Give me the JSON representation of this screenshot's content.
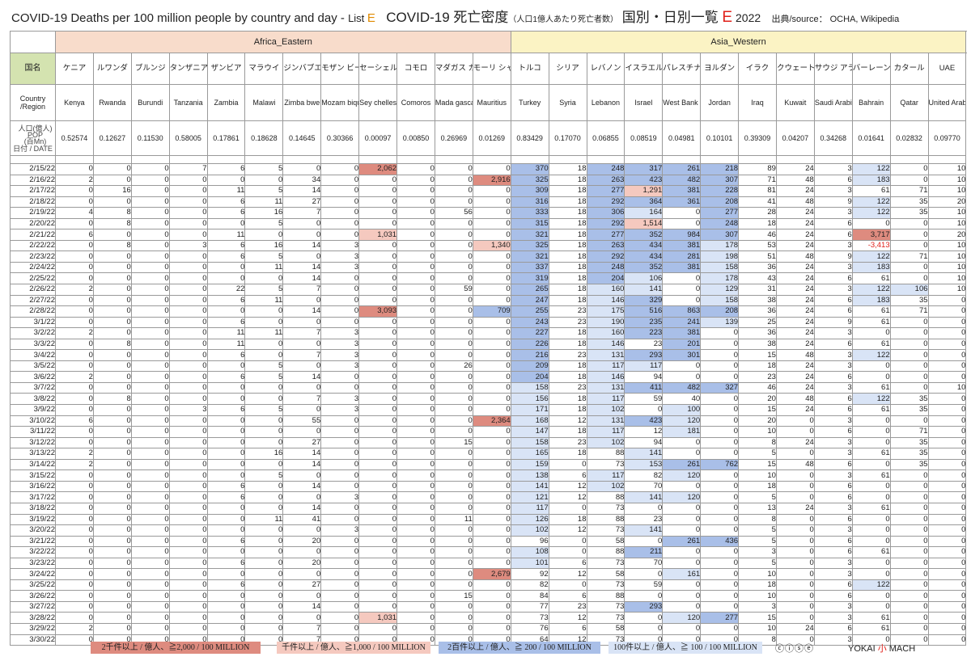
{
  "title": {
    "en": "COVID-19 Deaths per 100 million people by country and day - ",
    "list": "List ",
    "list_letter": "E",
    "jp": "COVID-19 死亡密度",
    "jp_sub": "（人口1億人あたり死亡者数）",
    "jp_tail": " 国別・日別一覧 ",
    "letter": "E",
    "year": " 2022",
    "source": "出典/source： OCHA, Wikipedia"
  },
  "regions": [
    {
      "name": "Africa_Eastern",
      "span": 13
    },
    {
      "name": "Asia_Western",
      "span": 13
    }
  ],
  "header": {
    "jp_label": "国名",
    "en_label": "Country\n/Region",
    "pop_label_top": "人口(億人)\nPOP\n(百Mn)",
    "pop_label_bottom": "日付 / DATE"
  },
  "countries": [
    {
      "jp": "ケニア",
      "en": "Kenya",
      "pop": "0.52574"
    },
    {
      "jp": "ルワンダ",
      "en": "Rwanda",
      "pop": "0.12627"
    },
    {
      "jp": "ブルンジ",
      "en": "Burundi",
      "pop": "0.11530"
    },
    {
      "jp": "タンザニア",
      "en": "Tanzania",
      "pop": "0.58005"
    },
    {
      "jp": "ザンビア",
      "en": "Zambia",
      "pop": "0.17861"
    },
    {
      "jp": "マラウイ",
      "en": "Malawi",
      "pop": "0.18628"
    },
    {
      "jp": "ジンバブエ",
      "en": "Zimba bwe",
      "pop": "0.14645"
    },
    {
      "jp": "モザン ビーク",
      "en": "Mozam bique",
      "pop": "0.30366"
    },
    {
      "jp": "セーシェル",
      "en": "Sey chelles",
      "pop": "0.00097"
    },
    {
      "jp": "コモロ",
      "en": "Comoros",
      "pop": "0.00850"
    },
    {
      "jp": "マダガス カル",
      "en": "Mada gascar",
      "pop": "0.26969"
    },
    {
      "jp": "モーリ シャス",
      "en": "Mauritius",
      "pop": "0.01269"
    },
    {
      "jp": "トルコ",
      "en": "Turkey",
      "pop": "0.83429"
    },
    {
      "jp": "シリア",
      "en": "Syria",
      "pop": "0.17070"
    },
    {
      "jp": "レバノン",
      "en": "Lebanon",
      "pop": "0.06855"
    },
    {
      "jp": "イスラエル",
      "en": "Israel",
      "pop": "0.08519"
    },
    {
      "jp": "パレスチナ",
      "en": "West Bank and Gaza",
      "pop": "0.04981"
    },
    {
      "jp": "ヨルダン",
      "en": "Jordan",
      "pop": "0.10101"
    },
    {
      "jp": "イラク",
      "en": "Iraq",
      "pop": "0.39309"
    },
    {
      "jp": "クウェート",
      "en": "Kuwait",
      "pop": "0.04207"
    },
    {
      "jp": "サウジ アラビア",
      "en": "Saudi Arabia",
      "pop": "0.34268"
    },
    {
      "jp": "バーレーン",
      "en": "Bahrain",
      "pop": "0.01641"
    },
    {
      "jp": "カタール",
      "en": "Qatar",
      "pop": "0.02832"
    },
    {
      "jp": "UAE",
      "en": "United Arab Emirates",
      "pop": "0.09770"
    }
  ],
  "rows": [
    {
      "d": "2/15/22",
      "v": [
        "0",
        "0",
        "0",
        "7",
        "6",
        "5",
        "0",
        "0",
        "2,062",
        "0",
        "0",
        "0",
        "370",
        "18",
        "248",
        "317",
        "261",
        "218",
        "89",
        "24",
        "3",
        "122",
        "0",
        "10"
      ]
    },
    {
      "d": "2/16/22",
      "v": [
        "2",
        "0",
        "0",
        "0",
        "0",
        "0",
        "34",
        "0",
        "0",
        "0",
        "0",
        "2,916",
        "325",
        "18",
        "263",
        "423",
        "482",
        "307",
        "71",
        "48",
        "6",
        "183",
        "0",
        "10"
      ]
    },
    {
      "d": "2/17/22",
      "v": [
        "0",
        "16",
        "0",
        "0",
        "11",
        "5",
        "14",
        "0",
        "0",
        "0",
        "0",
        "0",
        "309",
        "18",
        "277",
        "1,291",
        "381",
        "228",
        "81",
        "24",
        "3",
        "61",
        "71",
        "10"
      ]
    },
    {
      "d": "2/18/22",
      "v": [
        "0",
        "0",
        "0",
        "0",
        "6",
        "11",
        "27",
        "0",
        "0",
        "0",
        "0",
        "0",
        "316",
        "18",
        "292",
        "364",
        "361",
        "208",
        "41",
        "48",
        "9",
        "122",
        "35",
        "20"
      ]
    },
    {
      "d": "2/19/22",
      "v": [
        "4",
        "8",
        "0",
        "0",
        "6",
        "16",
        "7",
        "0",
        "0",
        "0",
        "56",
        "0",
        "333",
        "18",
        "306",
        "164",
        "0",
        "277",
        "28",
        "24",
        "3",
        "122",
        "35",
        "10"
      ]
    },
    {
      "d": "2/20/22",
      "v": [
        "0",
        "8",
        "0",
        "0",
        "0",
        "5",
        "0",
        "0",
        "0",
        "0",
        "0",
        "0",
        "315",
        "18",
        "292",
        "1,514",
        "0",
        "248",
        "18",
        "24",
        "6",
        "0",
        "0",
        "10"
      ]
    },
    {
      "d": "2/21/22",
      "v": [
        "6",
        "0",
        "0",
        "0",
        "11",
        "0",
        "0",
        "0",
        "1,031",
        "0",
        "0",
        "0",
        "321",
        "18",
        "277",
        "352",
        "984",
        "307",
        "46",
        "24",
        "6",
        "3,717",
        "0",
        "20"
      ]
    },
    {
      "d": "2/22/22",
      "v": [
        "0",
        "8",
        "0",
        "3",
        "6",
        "16",
        "14",
        "3",
        "0",
        "0",
        "0",
        "1,340",
        "325",
        "18",
        "263",
        "434",
        "381",
        "178",
        "53",
        "24",
        "3",
        "-3,413",
        "0",
        "10"
      ]
    },
    {
      "d": "2/23/22",
      "v": [
        "0",
        "0",
        "0",
        "0",
        "6",
        "5",
        "0",
        "3",
        "0",
        "0",
        "0",
        "0",
        "321",
        "18",
        "292",
        "434",
        "281",
        "198",
        "51",
        "48",
        "9",
        "122",
        "71",
        "10"
      ]
    },
    {
      "d": "2/24/22",
      "v": [
        "0",
        "0",
        "0",
        "0",
        "0",
        "11",
        "14",
        "3",
        "0",
        "0",
        "0",
        "0",
        "337",
        "18",
        "248",
        "352",
        "381",
        "158",
        "36",
        "24",
        "3",
        "183",
        "0",
        "10"
      ]
    },
    {
      "d": "2/25/22",
      "v": [
        "0",
        "0",
        "0",
        "0",
        "0",
        "0",
        "14",
        "0",
        "0",
        "0",
        "0",
        "0",
        "319",
        "18",
        "204",
        "106",
        "0",
        "178",
        "43",
        "24",
        "6",
        "61",
        "0",
        "10"
      ]
    },
    {
      "d": "2/26/22",
      "v": [
        "2",
        "0",
        "0",
        "0",
        "22",
        "5",
        "7",
        "0",
        "0",
        "0",
        "59",
        "0",
        "265",
        "18",
        "160",
        "141",
        "0",
        "129",
        "31",
        "24",
        "3",
        "122",
        "106",
        "10"
      ]
    },
    {
      "d": "2/27/22",
      "v": [
        "0",
        "0",
        "0",
        "0",
        "6",
        "11",
        "0",
        "0",
        "0",
        "0",
        "0",
        "0",
        "247",
        "18",
        "146",
        "329",
        "0",
        "158",
        "38",
        "24",
        "6",
        "183",
        "35",
        "0"
      ]
    },
    {
      "d": "2/28/22",
      "v": [
        "0",
        "0",
        "0",
        "0",
        "0",
        "0",
        "14",
        "0",
        "3,093",
        "0",
        "0",
        "709",
        "255",
        "23",
        "175",
        "516",
        "863",
        "208",
        "36",
        "24",
        "6",
        "61",
        "71",
        "0"
      ]
    },
    {
      "d": "3/1/22",
      "v": [
        "0",
        "0",
        "0",
        "0",
        "6",
        "0",
        "0",
        "0",
        "0",
        "0",
        "0",
        "0",
        "243",
        "23",
        "190",
        "235",
        "241",
        "139",
        "25",
        "24",
        "9",
        "61",
        "0",
        "0"
      ]
    },
    {
      "d": "3/2/22",
      "v": [
        "2",
        "0",
        "0",
        "0",
        "11",
        "11",
        "7",
        "3",
        "0",
        "0",
        "0",
        "0",
        "227",
        "18",
        "160",
        "223",
        "381",
        "0",
        "36",
        "24",
        "3",
        "0",
        "0",
        "0"
      ]
    },
    {
      "d": "3/3/22",
      "v": [
        "0",
        "8",
        "0",
        "0",
        "11",
        "0",
        "0",
        "3",
        "0",
        "0",
        "0",
        "0",
        "226",
        "18",
        "146",
        "23",
        "201",
        "0",
        "38",
        "24",
        "6",
        "61",
        "0",
        "0"
      ]
    },
    {
      "d": "3/4/22",
      "v": [
        "0",
        "0",
        "0",
        "0",
        "6",
        "0",
        "7",
        "3",
        "0",
        "0",
        "0",
        "0",
        "216",
        "23",
        "131",
        "293",
        "301",
        "0",
        "15",
        "48",
        "3",
        "122",
        "0",
        "0"
      ]
    },
    {
      "d": "3/5/22",
      "v": [
        "0",
        "0",
        "0",
        "0",
        "0",
        "5",
        "0",
        "3",
        "0",
        "0",
        "26",
        "0",
        "209",
        "18",
        "117",
        "117",
        "0",
        "0",
        "18",
        "24",
        "3",
        "0",
        "0",
        "0"
      ]
    },
    {
      "d": "3/6/22",
      "v": [
        "2",
        "0",
        "0",
        "0",
        "6",
        "5",
        "14",
        "0",
        "0",
        "0",
        "0",
        "0",
        "204",
        "18",
        "146",
        "94",
        "0",
        "0",
        "23",
        "24",
        "6",
        "0",
        "0",
        "0"
      ]
    },
    {
      "d": "3/7/22",
      "v": [
        "0",
        "0",
        "0",
        "0",
        "0",
        "0",
        "0",
        "0",
        "0",
        "0",
        "0",
        "0",
        "158",
        "23",
        "131",
        "411",
        "482",
        "327",
        "46",
        "24",
        "3",
        "61",
        "0",
        "10"
      ]
    },
    {
      "d": "3/8/22",
      "v": [
        "0",
        "8",
        "0",
        "0",
        "0",
        "0",
        "7",
        "3",
        "0",
        "0",
        "0",
        "0",
        "156",
        "18",
        "117",
        "59",
        "40",
        "0",
        "20",
        "48",
        "6",
        "122",
        "35",
        "0"
      ]
    },
    {
      "d": "3/9/22",
      "v": [
        "0",
        "0",
        "0",
        "3",
        "6",
        "5",
        "0",
        "3",
        "0",
        "0",
        "0",
        "0",
        "171",
        "18",
        "102",
        "0",
        "100",
        "0",
        "15",
        "24",
        "6",
        "61",
        "35",
        "0"
      ]
    },
    {
      "d": "3/10/22",
      "v": [
        "6",
        "0",
        "0",
        "0",
        "0",
        "0",
        "55",
        "0",
        "0",
        "0",
        "0",
        "2,364",
        "168",
        "12",
        "131",
        "423",
        "120",
        "0",
        "20",
        "0",
        "3",
        "0",
        "0",
        "0"
      ]
    },
    {
      "d": "3/11/22",
      "v": [
        "0",
        "0",
        "0",
        "0",
        "0",
        "0",
        "0",
        "0",
        "0",
        "0",
        "0",
        "0",
        "147",
        "18",
        "117",
        "12",
        "181",
        "0",
        "10",
        "0",
        "6",
        "0",
        "71",
        "0"
      ]
    },
    {
      "d": "3/12/22",
      "v": [
        "0",
        "0",
        "0",
        "0",
        "0",
        "0",
        "27",
        "0",
        "0",
        "0",
        "15",
        "0",
        "158",
        "23",
        "102",
        "94",
        "0",
        "0",
        "8",
        "24",
        "3",
        "0",
        "35",
        "0"
      ]
    },
    {
      "d": "3/13/22",
      "v": [
        "2",
        "0",
        "0",
        "0",
        "0",
        "16",
        "14",
        "0",
        "0",
        "0",
        "0",
        "0",
        "165",
        "18",
        "88",
        "141",
        "0",
        "0",
        "5",
        "0",
        "3",
        "61",
        "35",
        "0"
      ]
    },
    {
      "d": "3/14/22",
      "v": [
        "2",
        "0",
        "0",
        "0",
        "0",
        "0",
        "14",
        "0",
        "0",
        "0",
        "0",
        "0",
        "159",
        "0",
        "73",
        "153",
        "261",
        "762",
        "15",
        "48",
        "6",
        "0",
        "35",
        "0"
      ]
    },
    {
      "d": "3/15/22",
      "v": [
        "0",
        "0",
        "0",
        "0",
        "0",
        "5",
        "0",
        "0",
        "0",
        "0",
        "0",
        "0",
        "138",
        "6",
        "117",
        "82",
        "120",
        "0",
        "10",
        "0",
        "3",
        "61",
        "0",
        "0"
      ]
    },
    {
      "d": "3/16/22",
      "v": [
        "0",
        "0",
        "0",
        "0",
        "6",
        "0",
        "14",
        "0",
        "0",
        "0",
        "0",
        "0",
        "141",
        "12",
        "102",
        "70",
        "0",
        "0",
        "18",
        "0",
        "6",
        "0",
        "0",
        "0"
      ]
    },
    {
      "d": "3/17/22",
      "v": [
        "0",
        "0",
        "0",
        "0",
        "6",
        "0",
        "0",
        "3",
        "0",
        "0",
        "0",
        "0",
        "121",
        "12",
        "88",
        "141",
        "120",
        "0",
        "5",
        "0",
        "6",
        "0",
        "0",
        "0"
      ]
    },
    {
      "d": "3/18/22",
      "v": [
        "0",
        "0",
        "0",
        "0",
        "0",
        "0",
        "14",
        "0",
        "0",
        "0",
        "0",
        "0",
        "117",
        "0",
        "73",
        "0",
        "0",
        "0",
        "13",
        "24",
        "3",
        "61",
        "0",
        "0"
      ]
    },
    {
      "d": "3/19/22",
      "v": [
        "0",
        "0",
        "0",
        "0",
        "0",
        "11",
        "41",
        "0",
        "0",
        "0",
        "11",
        "0",
        "126",
        "18",
        "88",
        "23",
        "0",
        "0",
        "8",
        "0",
        "6",
        "0",
        "0",
        "0"
      ]
    },
    {
      "d": "3/20/22",
      "v": [
        "0",
        "0",
        "0",
        "0",
        "0",
        "0",
        "0",
        "3",
        "0",
        "0",
        "0",
        "0",
        "102",
        "12",
        "73",
        "141",
        "0",
        "0",
        "5",
        "0",
        "3",
        "0",
        "0",
        "0"
      ]
    },
    {
      "d": "3/21/22",
      "v": [
        "0",
        "0",
        "0",
        "0",
        "6",
        "0",
        "20",
        "0",
        "0",
        "0",
        "0",
        "0",
        "96",
        "0",
        "58",
        "0",
        "261",
        "436",
        "5",
        "0",
        "6",
        "0",
        "0",
        "0"
      ]
    },
    {
      "d": "3/22/22",
      "v": [
        "0",
        "0",
        "0",
        "0",
        "0",
        "0",
        "0",
        "0",
        "0",
        "0",
        "0",
        "0",
        "108",
        "0",
        "88",
        "211",
        "0",
        "0",
        "3",
        "0",
        "6",
        "61",
        "0",
        "0"
      ]
    },
    {
      "d": "3/23/22",
      "v": [
        "0",
        "0",
        "0",
        "0",
        "6",
        "0",
        "20",
        "0",
        "0",
        "0",
        "0",
        "0",
        "101",
        "6",
        "73",
        "70",
        "0",
        "0",
        "5",
        "0",
        "3",
        "0",
        "0",
        "0"
      ]
    },
    {
      "d": "3/24/22",
      "v": [
        "0",
        "0",
        "0",
        "0",
        "0",
        "0",
        "0",
        "0",
        "0",
        "0",
        "0",
        "2,679",
        "92",
        "12",
        "58",
        "0",
        "161",
        "0",
        "10",
        "0",
        "3",
        "0",
        "0",
        "0"
      ]
    },
    {
      "d": "3/25/22",
      "v": [
        "0",
        "0",
        "0",
        "0",
        "6",
        "0",
        "27",
        "0",
        "0",
        "0",
        "0",
        "0",
        "82",
        "0",
        "73",
        "59",
        "0",
        "0",
        "18",
        "0",
        "6",
        "122",
        "0",
        "0"
      ]
    },
    {
      "d": "3/26/22",
      "v": [
        "0",
        "0",
        "0",
        "0",
        "0",
        "0",
        "0",
        "0",
        "0",
        "0",
        "15",
        "0",
        "84",
        "6",
        "88",
        "0",
        "0",
        "0",
        "10",
        "0",
        "6",
        "0",
        "0",
        "0"
      ]
    },
    {
      "d": "3/27/22",
      "v": [
        "0",
        "0",
        "0",
        "0",
        "0",
        "0",
        "14",
        "0",
        "0",
        "0",
        "0",
        "0",
        "77",
        "23",
        "73",
        "293",
        "0",
        "0",
        "3",
        "0",
        "3",
        "0",
        "0",
        "0"
      ]
    },
    {
      "d": "3/28/22",
      "v": [
        "0",
        "0",
        "0",
        "0",
        "0",
        "0",
        "0",
        "0",
        "1,031",
        "0",
        "0",
        "0",
        "73",
        "12",
        "73",
        "0",
        "120",
        "277",
        "15",
        "0",
        "3",
        "61",
        "0",
        "0"
      ]
    },
    {
      "d": "3/29/22",
      "v": [
        "2",
        "0",
        "0",
        "0",
        "0",
        "0",
        "7",
        "0",
        "0",
        "0",
        "0",
        "0",
        "76",
        "6",
        "58",
        "0",
        "0",
        "0",
        "10",
        "24",
        "6",
        "61",
        "0",
        "0"
      ]
    },
    {
      "d": "3/30/22",
      "v": [
        "0",
        "0",
        "0",
        "0",
        "0",
        "0",
        "7",
        "0",
        "0",
        "0",
        "0",
        "0",
        "64",
        "12",
        "73",
        "0",
        "0",
        "0",
        "8",
        "0",
        "3",
        "0",
        "0",
        "0"
      ]
    }
  ],
  "legend": [
    {
      "label": "2千件以上 / 億人、≧2,000 / 100 MILLION",
      "color": "#de8b7f"
    },
    {
      "label": "千件以上 / 億人、≧1,000 / 100 MILLION",
      "color": "#f5c9bf"
    },
    {
      "label": "2百件以上 / 億人、≧ 200 / 100 MILLION",
      "color": "#a9bfe8"
    },
    {
      "label": "100件以上 / 億人、≧ 100 / 100 MILLION",
      "color": "#d9e4f6"
    }
  ],
  "license": "ⓒⓘⓢⓔ",
  "brand": {
    "pre": "YOKAI",
    "mid": "小",
    "post": "MACH"
  }
}
